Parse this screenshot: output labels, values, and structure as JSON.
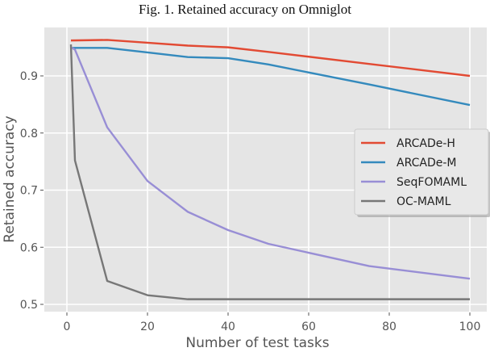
{
  "figure": {
    "caption": "Fig. 1.  Retained accuracy on Omniglot"
  },
  "chart_data": {
    "type": "line",
    "title": "Fig. 1.  Retained accuracy on Omniglot",
    "xlabel": "Number of test tasks",
    "ylabel": "Retained accuracy",
    "xlim": [
      -3,
      105
    ],
    "ylim": [
      0.49,
      0.99
    ],
    "xticks": [
      0,
      20,
      40,
      60,
      80,
      100
    ],
    "yticks": [
      0.5,
      0.6,
      0.7,
      0.8,
      0.9
    ],
    "xtick_labels": [
      "0",
      "20",
      "40",
      "60",
      "80",
      "100"
    ],
    "ytick_labels": [
      "0.5",
      "0.6",
      "0.7",
      "0.8",
      "0.9"
    ],
    "grid": true,
    "style": "ggplot",
    "legend_position": "center right",
    "series": [
      {
        "name": "ARCADe-H",
        "color": "#E24A33",
        "x": [
          1,
          10,
          20,
          30,
          40,
          50,
          75,
          100
        ],
        "y": [
          0.962,
          0.963,
          0.958,
          0.953,
          0.95,
          0.942,
          0.921,
          0.9
        ]
      },
      {
        "name": "ARCADe-M",
        "color": "#348ABD",
        "x": [
          1,
          10,
          20,
          30,
          40,
          50,
          75,
          100
        ],
        "y": [
          0.949,
          0.949,
          0.941,
          0.933,
          0.931,
          0.92,
          0.885,
          0.849
        ]
      },
      {
        "name": "SeqFOMAML",
        "color": "#988ED5",
        "x": [
          1,
          2,
          10,
          20,
          30,
          40,
          50,
          75,
          100
        ],
        "y": [
          0.95,
          0.946,
          0.81,
          0.716,
          0.662,
          0.63,
          0.606,
          0.567,
          0.545
        ]
      },
      {
        "name": "OC-MAML",
        "color": "#777777",
        "x": [
          1,
          2,
          10,
          20,
          30,
          40,
          50,
          75,
          100
        ],
        "y": [
          0.955,
          0.752,
          0.541,
          0.516,
          0.509,
          0.509,
          0.509,
          0.509,
          0.509
        ]
      }
    ]
  }
}
